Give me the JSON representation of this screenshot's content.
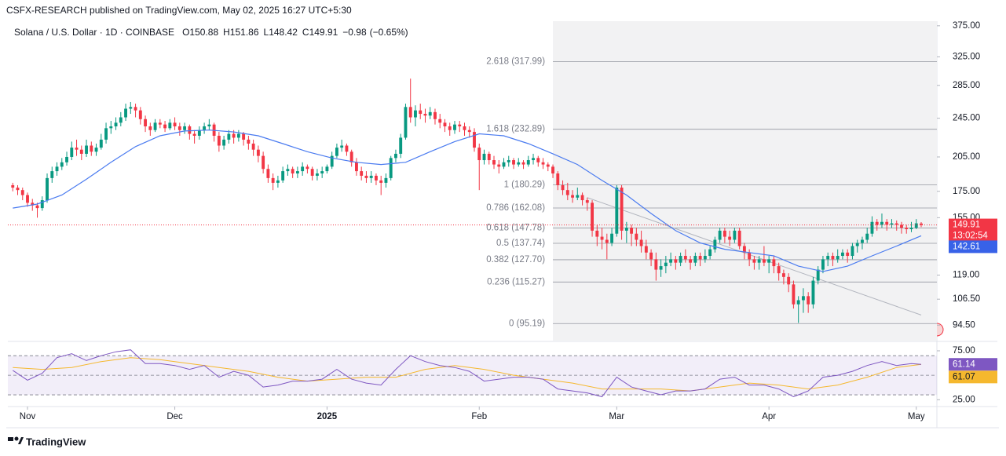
{
  "chart_data": {
    "type": "candlestick",
    "published": "CSFX-RESEARCH published on TradingView.com, May 02, 2025 16:27 UTC+5:30",
    "symbol": "Solana / U.S. Dollar · 1D · COINBASE",
    "ohlc_legend": [
      {
        "prefix": "O",
        "value": 150.88
      },
      {
        "prefix": "H",
        "value": 151.86
      },
      {
        "prefix": "L",
        "value": 148.42
      },
      {
        "prefix": "C",
        "value": 149.91
      }
    ],
    "change": {
      "value": -0.98,
      "label": "−0.98"
    },
    "change_pct": {
      "value": -0.65,
      "label": "(−0.65%)"
    },
    "brand": "TradingView",
    "log_scale": true,
    "up_color": "#089981",
    "down_color": "#f23645",
    "xlim": [
      -1,
      188.2
    ],
    "ylim": [
      88,
      383
    ],
    "yticks": [
      {
        "value": 375,
        "label": "375.00"
      },
      {
        "value": 325,
        "label": "325.00"
      },
      {
        "value": 285,
        "label": "285.00"
      },
      {
        "value": 245,
        "label": "245.00"
      },
      {
        "value": 205,
        "label": "205.00"
      },
      {
        "value": 175,
        "label": "175.00"
      },
      {
        "value": 155,
        "label": "155.00"
      },
      {
        "value": 119,
        "label": "119.00"
      },
      {
        "value": 106.5,
        "label": "106.50"
      },
      {
        "value": 94.5,
        "label": "94.50"
      }
    ],
    "xticks": [
      {
        "value": 3,
        "label": "Nov"
      },
      {
        "value": 33,
        "label": "Dec"
      },
      {
        "value": 64,
        "label": "2025"
      },
      {
        "value": 95,
        "label": "Feb"
      },
      {
        "value": 123,
        "label": "Mar"
      },
      {
        "value": 154,
        "label": "Apr"
      },
      {
        "value": 184,
        "label": "May"
      }
    ],
    "candles": [
      [
        180,
        182,
        175,
        178
      ],
      [
        178,
        180,
        172,
        176
      ],
      [
        176,
        178,
        168,
        172
      ],
      [
        172,
        174,
        163,
        166
      ],
      [
        166,
        169,
        160,
        164
      ],
      [
        164,
        166,
        155,
        162
      ],
      [
        162,
        171,
        160,
        168
      ],
      [
        168,
        190,
        166,
        186
      ],
      [
        186,
        196,
        182,
        192
      ],
      [
        192,
        200,
        188,
        196
      ],
      [
        196,
        204,
        193,
        200
      ],
      [
        200,
        210,
        197,
        205
      ],
      [
        205,
        220,
        202,
        214
      ],
      [
        214,
        222,
        206,
        212
      ],
      [
        212,
        216,
        202,
        208
      ],
      [
        208,
        222,
        205,
        216
      ],
      [
        216,
        220,
        206,
        210
      ],
      [
        210,
        218,
        206,
        214
      ],
      [
        214,
        228,
        212,
        222
      ],
      [
        222,
        240,
        218,
        234
      ],
      [
        234,
        242,
        228,
        236
      ],
      [
        236,
        246,
        232,
        240
      ],
      [
        240,
        252,
        236,
        246
      ],
      [
        246,
        262,
        242,
        256
      ],
      [
        256,
        264,
        250,
        258
      ],
      [
        258,
        262,
        246,
        254
      ],
      [
        254,
        258,
        238,
        244
      ],
      [
        244,
        248,
        230,
        236
      ],
      [
        236,
        240,
        226,
        232
      ],
      [
        232,
        244,
        230,
        240
      ],
      [
        240,
        244,
        234,
        238
      ],
      [
        238,
        242,
        230,
        234
      ],
      [
        234,
        244,
        232,
        240
      ],
      [
        240,
        246,
        232,
        236
      ],
      [
        236,
        240,
        226,
        232
      ],
      [
        232,
        240,
        228,
        236
      ],
      [
        236,
        238,
        222,
        228
      ],
      [
        228,
        232,
        218,
        226
      ],
      [
        226,
        236,
        222,
        232
      ],
      [
        232,
        240,
        228,
        236
      ],
      [
        236,
        244,
        232,
        238
      ],
      [
        238,
        240,
        220,
        226
      ],
      [
        226,
        230,
        210,
        216
      ],
      [
        216,
        226,
        212,
        222
      ],
      [
        222,
        232,
        218,
        228
      ],
      [
        228,
        232,
        218,
        224
      ],
      [
        224,
        232,
        220,
        228
      ],
      [
        228,
        230,
        216,
        222
      ],
      [
        222,
        226,
        212,
        218
      ],
      [
        218,
        222,
        206,
        212
      ],
      [
        212,
        216,
        200,
        206
      ],
      [
        206,
        210,
        190,
        194
      ],
      [
        194,
        198,
        182,
        186
      ],
      [
        186,
        190,
        176,
        182
      ],
      [
        182,
        188,
        178,
        184
      ],
      [
        184,
        196,
        182,
        192
      ],
      [
        192,
        198,
        188,
        194
      ],
      [
        194,
        196,
        186,
        190
      ],
      [
        190,
        196,
        186,
        192
      ],
      [
        192,
        200,
        188,
        196
      ],
      [
        196,
        198,
        190,
        194
      ],
      [
        194,
        196,
        184,
        188
      ],
      [
        188,
        194,
        184,
        190
      ],
      [
        190,
        196,
        186,
        192
      ],
      [
        192,
        198,
        190,
        196
      ],
      [
        196,
        210,
        194,
        206
      ],
      [
        206,
        218,
        204,
        214
      ],
      [
        214,
        222,
        210,
        216
      ],
      [
        216,
        218,
        206,
        210
      ],
      [
        210,
        212,
        196,
        200
      ],
      [
        200,
        204,
        188,
        192
      ],
      [
        192,
        196,
        184,
        188
      ],
      [
        188,
        192,
        182,
        186
      ],
      [
        186,
        192,
        182,
        188
      ],
      [
        188,
        190,
        180,
        184
      ],
      [
        184,
        188,
        172,
        182
      ],
      [
        182,
        190,
        178,
        186
      ],
      [
        186,
        206,
        184,
        204
      ],
      [
        204,
        212,
        200,
        208
      ],
      [
        208,
        228,
        204,
        224
      ],
      [
        224,
        262,
        222,
        258
      ],
      [
        258,
        294,
        240,
        246
      ],
      [
        246,
        260,
        236,
        254
      ],
      [
        254,
        262,
        244,
        250
      ],
      [
        250,
        256,
        240,
        248
      ],
      [
        248,
        258,
        244,
        252
      ],
      [
        252,
        256,
        238,
        244
      ],
      [
        244,
        250,
        234,
        240
      ],
      [
        240,
        244,
        230,
        236
      ],
      [
        236,
        240,
        226,
        232
      ],
      [
        232,
        242,
        228,
        238
      ],
      [
        238,
        242,
        230,
        236
      ],
      [
        236,
        240,
        226,
        232
      ],
      [
        232,
        236,
        224,
        230
      ],
      [
        230,
        234,
        210,
        214
      ],
      [
        214,
        218,
        176,
        202
      ],
      [
        202,
        212,
        198,
        208
      ],
      [
        208,
        210,
        198,
        202
      ],
      [
        202,
        206,
        194,
        198
      ],
      [
        198,
        202,
        190,
        196
      ],
      [
        196,
        204,
        194,
        200
      ],
      [
        200,
        206,
        196,
        202
      ],
      [
        202,
        204,
        194,
        198
      ],
      [
        198,
        204,
        196,
        200
      ],
      [
        200,
        202,
        194,
        198
      ],
      [
        198,
        206,
        196,
        202
      ],
      [
        202,
        208,
        198,
        204
      ],
      [
        204,
        206,
        196,
        200
      ],
      [
        200,
        204,
        194,
        198
      ],
      [
        198,
        200,
        192,
        196
      ],
      [
        196,
        198,
        186,
        190
      ],
      [
        190,
        192,
        176,
        180
      ],
      [
        180,
        184,
        172,
        176
      ],
      [
        176,
        182,
        168,
        172
      ],
      [
        172,
        176,
        166,
        170
      ],
      [
        170,
        178,
        168,
        172
      ],
      [
        172,
        174,
        164,
        168
      ],
      [
        168,
        170,
        160,
        166
      ],
      [
        166,
        168,
        142,
        146
      ],
      [
        146,
        150,
        136,
        142
      ],
      [
        142,
        148,
        134,
        140
      ],
      [
        140,
        144,
        128,
        138
      ],
      [
        138,
        148,
        136,
        144
      ],
      [
        144,
        180,
        142,
        178
      ],
      [
        178,
        180,
        140,
        146
      ],
      [
        146,
        152,
        138,
        148
      ],
      [
        148,
        150,
        136,
        144
      ],
      [
        144,
        148,
        136,
        140
      ],
      [
        140,
        146,
        132,
        136
      ],
      [
        136,
        140,
        128,
        132
      ],
      [
        132,
        134,
        124,
        128
      ],
      [
        128,
        132,
        116,
        122
      ],
      [
        122,
        128,
        118,
        124
      ],
      [
        124,
        130,
        120,
        126
      ],
      [
        126,
        132,
        124,
        128
      ],
      [
        128,
        130,
        122,
        126
      ],
      [
        126,
        132,
        124,
        130
      ],
      [
        130,
        134,
        126,
        128
      ],
      [
        128,
        130,
        122,
        126
      ],
      [
        126,
        132,
        124,
        130
      ],
      [
        130,
        132,
        124,
        128
      ],
      [
        128,
        134,
        126,
        130
      ],
      [
        130,
        136,
        128,
        134
      ],
      [
        134,
        142,
        132,
        140
      ],
      [
        140,
        148,
        138,
        146
      ],
      [
        146,
        148,
        138,
        142
      ],
      [
        142,
        146,
        136,
        140
      ],
      [
        140,
        148,
        138,
        146
      ],
      [
        146,
        148,
        134,
        136
      ],
      [
        136,
        138,
        128,
        132
      ],
      [
        132,
        134,
        124,
        128
      ],
      [
        128,
        130,
        122,
        126
      ],
      [
        126,
        130,
        122,
        128
      ],
      [
        128,
        136,
        124,
        126
      ],
      [
        126,
        130,
        120,
        128
      ],
      [
        128,
        130,
        120,
        124
      ],
      [
        124,
        126,
        116,
        120
      ],
      [
        120,
        122,
        114,
        118
      ],
      [
        118,
        120,
        110,
        114
      ],
      [
        114,
        116,
        102,
        104
      ],
      [
        104,
        108,
        95.5,
        106
      ],
      [
        106,
        112,
        100,
        108
      ],
      [
        108,
        110,
        100,
        104
      ],
      [
        104,
        118,
        102,
        116
      ],
      [
        116,
        124,
        114,
        122
      ],
      [
        122,
        130,
        120,
        128
      ],
      [
        128,
        132,
        124,
        130
      ],
      [
        130,
        132,
        124,
        128
      ],
      [
        128,
        134,
        126,
        130
      ],
      [
        130,
        134,
        128,
        132
      ],
      [
        132,
        134,
        126,
        130
      ],
      [
        130,
        138,
        128,
        136
      ],
      [
        136,
        140,
        132,
        138
      ],
      [
        138,
        142,
        134,
        140
      ],
      [
        140,
        148,
        138,
        144
      ],
      [
        144,
        156,
        142,
        152
      ],
      [
        152,
        154,
        146,
        150
      ],
      [
        150,
        158,
        148,
        152
      ],
      [
        152,
        154,
        146,
        150
      ],
      [
        150,
        154,
        148,
        151
      ],
      [
        151,
        153,
        146,
        150
      ],
      [
        150,
        152,
        144,
        148
      ],
      [
        148,
        150,
        144,
        147
      ],
      [
        147,
        152,
        145,
        148
      ],
      [
        148,
        154,
        147,
        151
      ],
      [
        150.88,
        151.86,
        148.42,
        149.91
      ]
    ],
    "ma_line": {
      "color": "#4a7bf0",
      "x": [
        0,
        5,
        10,
        15,
        20,
        25,
        30,
        35,
        40,
        45,
        50,
        55,
        60,
        65,
        70,
        75,
        80,
        85,
        90,
        95,
        100,
        105,
        110,
        115,
        120,
        125,
        130,
        135,
        140,
        145,
        150,
        155,
        160,
        165,
        170,
        175,
        180,
        185
      ],
      "values": [
        162,
        165,
        172,
        185,
        200,
        215,
        226,
        231,
        232,
        230,
        226,
        218,
        210,
        204,
        200,
        198,
        200,
        210,
        220,
        228,
        226,
        218,
        208,
        198,
        184,
        172,
        158,
        146,
        138,
        134,
        132,
        130,
        124,
        121,
        124,
        130,
        136,
        142.61
      ]
    },
    "last_price": {
      "value": 149.91,
      "countdown": "13:02:54",
      "color": "#f23645"
    },
    "fib_from_x": 110,
    "fib_levels": [
      {
        "value": 317.99,
        "label": "2.618 (317.99)"
      },
      {
        "value": 232.89,
        "label": "1.618 (232.89)"
      },
      {
        "value": 180.29,
        "label": "1 (180.29)"
      },
      {
        "value": 162.08,
        "label": "0.786 (162.08)"
      },
      {
        "value": 147.78,
        "label": "0.618 (147.78)"
      },
      {
        "value": 137.74,
        "label": "0.5 (137.74)"
      },
      {
        "value": 127.7,
        "label": "0.382 (127.70)"
      },
      {
        "value": 115.27,
        "label": "0.236 (115.27)"
      },
      {
        "value": 95.19,
        "label": "0 (95.19)"
      }
    ],
    "trendline": {
      "x": [
        117,
        185
      ],
      "values": [
        170,
        99
      ]
    },
    "rsi": {
      "ylim": [
        18,
        83
      ],
      "yticks": [
        {
          "value": 75,
          "label": "75.00"
        },
        {
          "value": 25,
          "label": "25.00"
        }
      ],
      "levels": [
        70,
        50,
        30
      ],
      "line": {
        "color": "#7e57c2",
        "x": [
          0,
          3,
          6,
          9,
          12,
          15,
          18,
          21,
          24,
          27,
          30,
          33,
          36,
          39,
          42,
          45,
          48,
          51,
          54,
          57,
          60,
          63,
          66,
          69,
          72,
          75,
          78,
          81,
          84,
          87,
          90,
          93,
          96,
          99,
          102,
          105,
          108,
          111,
          114,
          117,
          120,
          123,
          126,
          129,
          132,
          135,
          138,
          141,
          144,
          147,
          150,
          153,
          156,
          159,
          162,
          165,
          168,
          171,
          174,
          177,
          180,
          183,
          185
        ],
        "values": [
          55,
          45,
          52,
          68,
          72,
          65,
          70,
          74,
          76,
          62,
          62,
          60,
          56,
          60,
          48,
          54,
          50,
          38,
          40,
          44,
          44,
          46,
          56,
          46,
          42,
          40,
          56,
          70,
          64,
          60,
          58,
          54,
          44,
          46,
          48,
          48,
          46,
          36,
          34,
          32,
          28,
          48,
          38,
          34,
          30,
          34,
          34,
          36,
          46,
          48,
          40,
          40,
          36,
          28,
          34,
          48,
          50,
          54,
          60,
          64,
          60,
          62,
          61.14
        ]
      },
      "ma": {
        "color": "#f5b82e",
        "x": [
          0,
          6,
          12,
          18,
          24,
          30,
          36,
          42,
          48,
          54,
          60,
          66,
          72,
          78,
          84,
          90,
          96,
          102,
          108,
          114,
          120,
          126,
          132,
          138,
          144,
          150,
          156,
          162,
          168,
          174,
          180,
          185
        ],
        "values": [
          58,
          56,
          58,
          64,
          68,
          66,
          62,
          58,
          54,
          48,
          44,
          46,
          48,
          48,
          56,
          60,
          56,
          50,
          46,
          42,
          36,
          36,
          36,
          34,
          38,
          42,
          40,
          36,
          40,
          48,
          58,
          61.07
        ]
      }
    }
  }
}
